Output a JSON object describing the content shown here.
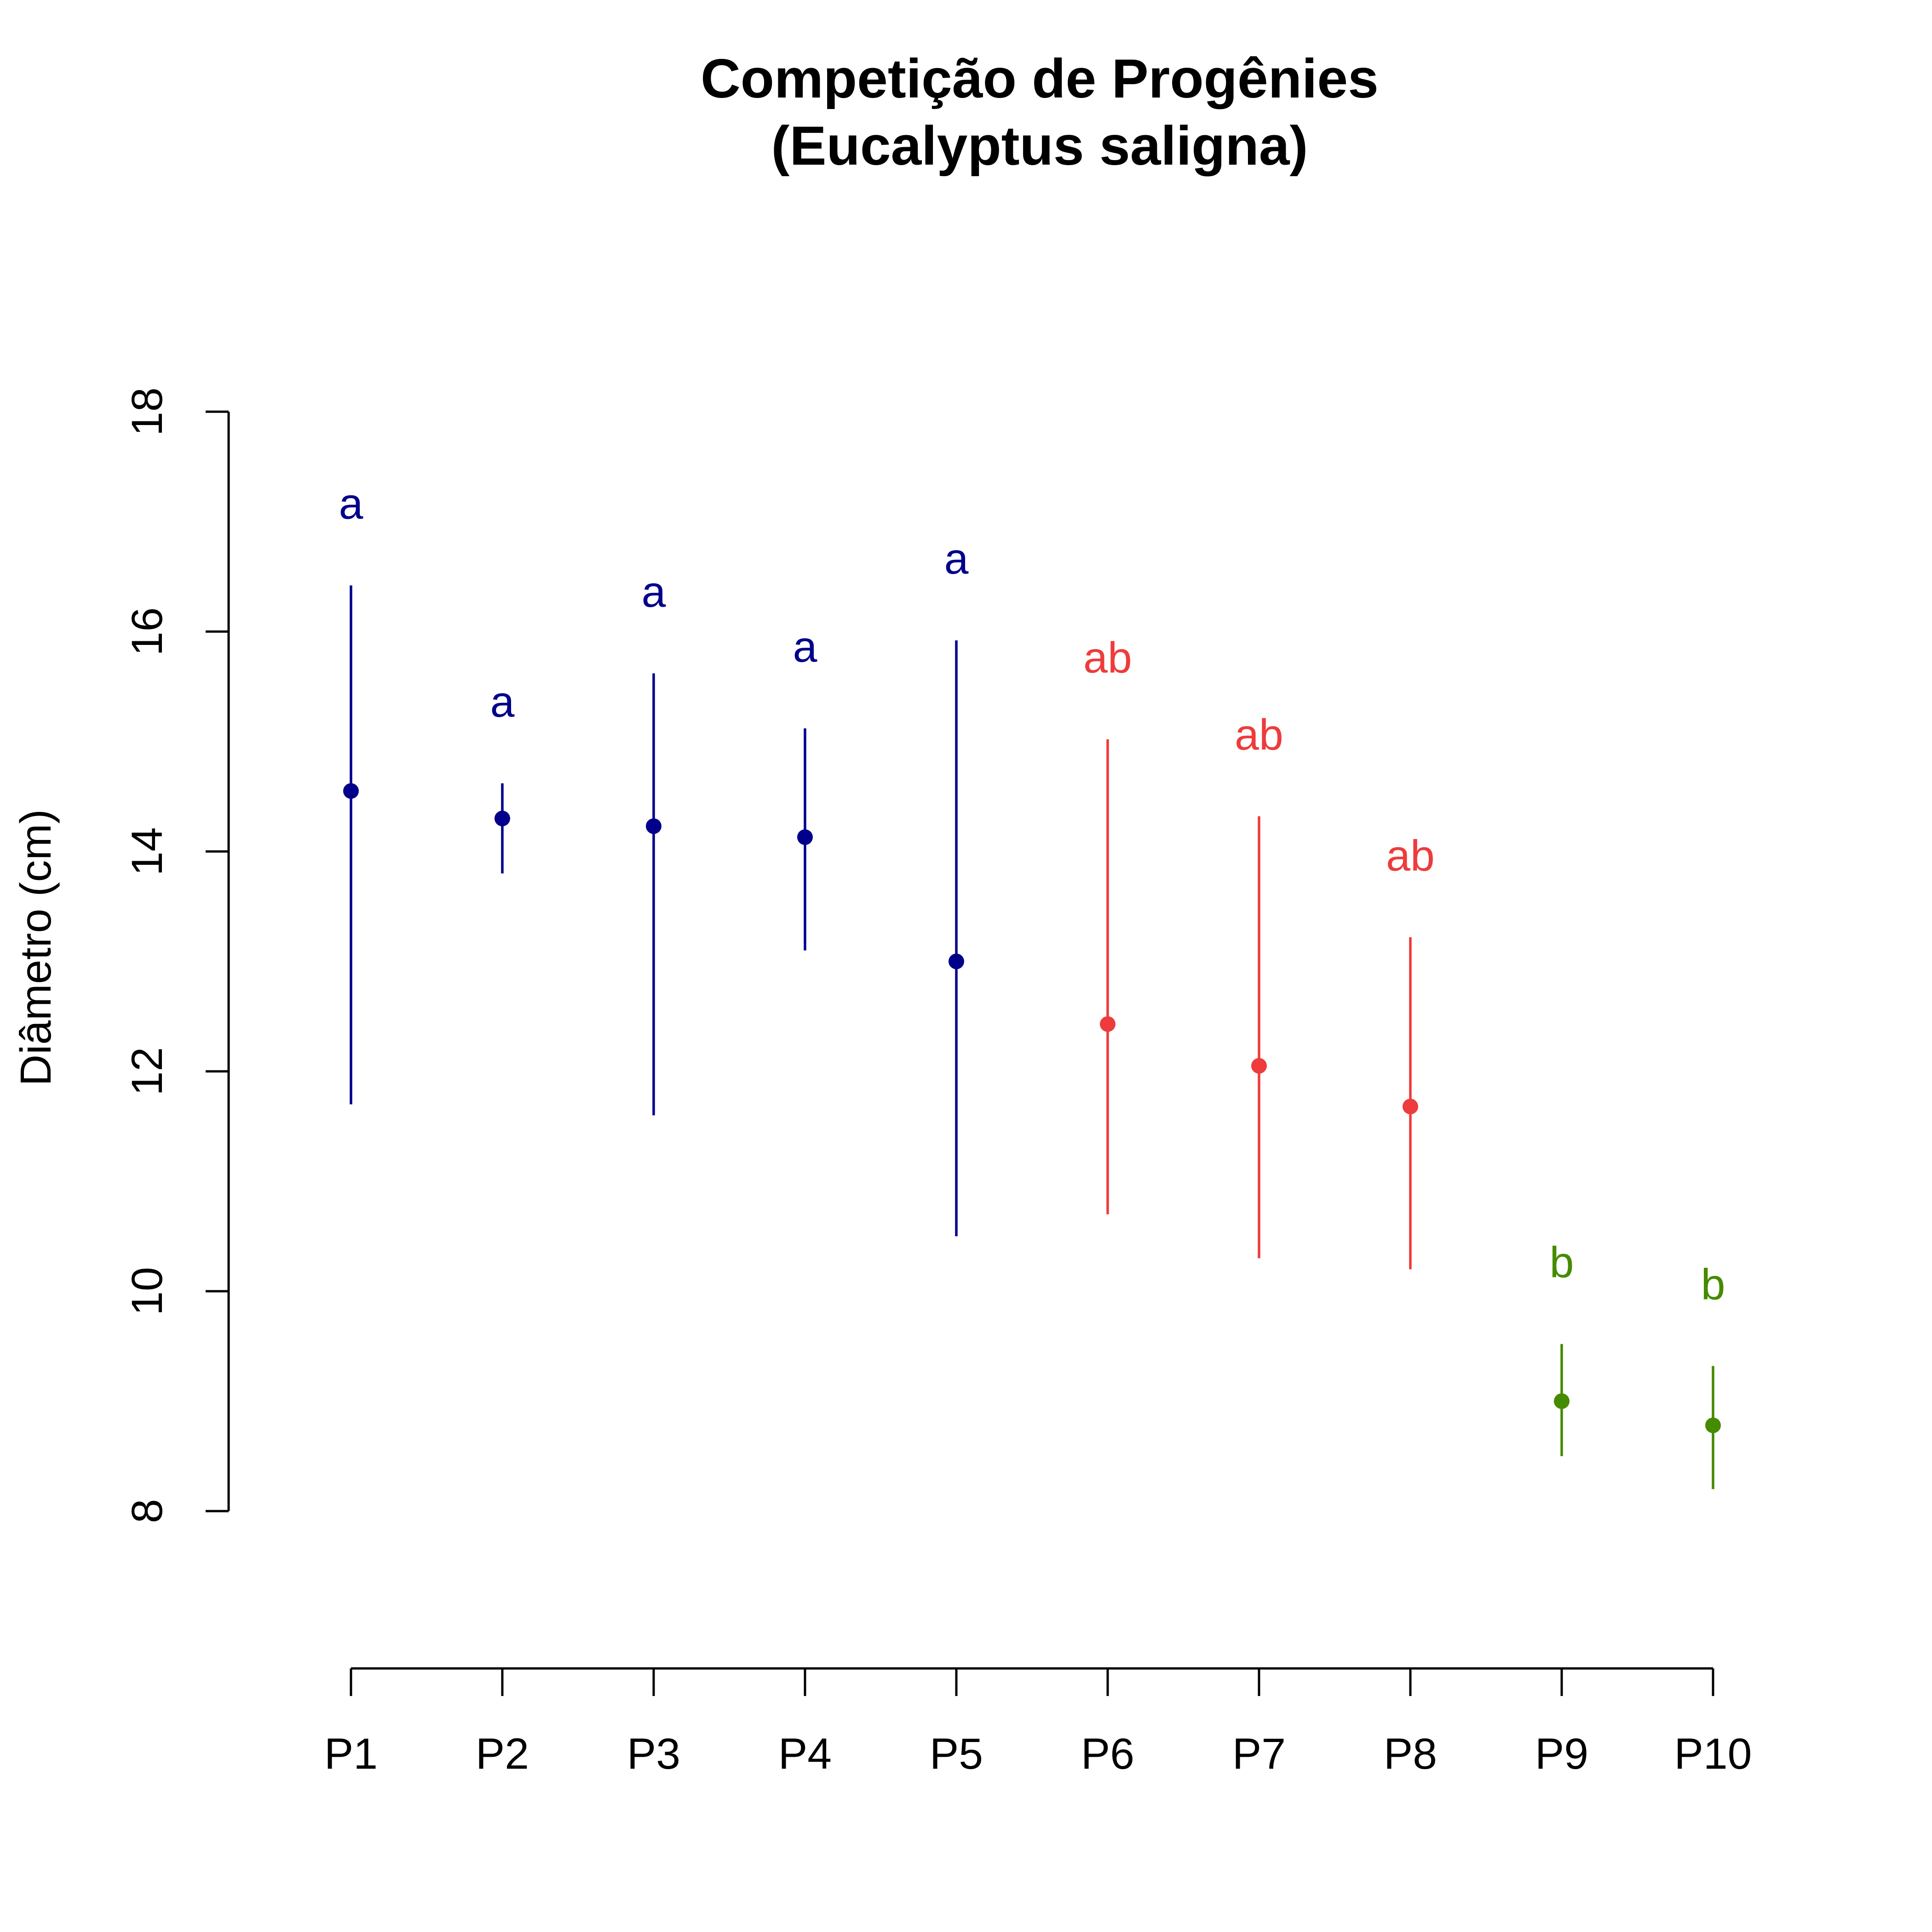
{
  "chart_data": {
    "type": "scatter",
    "title": [
      "Competição de Progênies",
      "(Eucalyptus saligna)"
    ],
    "xlabel": "",
    "ylabel": "Diâmetro (cm)",
    "categories": [
      "P1",
      "P2",
      "P3",
      "P4",
      "P5",
      "P6",
      "P7",
      "P8",
      "P9",
      "P10"
    ],
    "ylim": [
      8,
      18
    ],
    "yticks": [
      8,
      10,
      12,
      14,
      16,
      18
    ],
    "grid": false,
    "points": [
      {
        "x": "P1",
        "mean": 14.55,
        "lower": 11.7,
        "upper": 16.42,
        "label": "a",
        "group": "a"
      },
      {
        "x": "P2",
        "mean": 14.3,
        "lower": 13.8,
        "upper": 14.62,
        "label": "a",
        "group": "a"
      },
      {
        "x": "P3",
        "mean": 14.23,
        "lower": 11.6,
        "upper": 15.62,
        "label": "a",
        "group": "a"
      },
      {
        "x": "P4",
        "mean": 14.13,
        "lower": 13.1,
        "upper": 15.12,
        "label": "a",
        "group": "a"
      },
      {
        "x": "P5",
        "mean": 13.0,
        "lower": 10.5,
        "upper": 15.92,
        "label": "a",
        "group": "a"
      },
      {
        "x": "P6",
        "mean": 12.43,
        "lower": 10.7,
        "upper": 15.02,
        "label": "ab",
        "group": "ab"
      },
      {
        "x": "P7",
        "mean": 12.05,
        "lower": 10.3,
        "upper": 14.32,
        "label": "ab",
        "group": "ab"
      },
      {
        "x": "P8",
        "mean": 11.68,
        "lower": 10.2,
        "upper": 13.22,
        "label": "ab",
        "group": "ab"
      },
      {
        "x": "P9",
        "mean": 9.0,
        "lower": 8.5,
        "upper": 9.52,
        "label": "b",
        "group": "b"
      },
      {
        "x": "P10",
        "mean": 8.78,
        "lower": 8.2,
        "upper": 9.32,
        "label": "b",
        "group": "b"
      }
    ],
    "group_colors": {
      "a": "#00008B",
      "ab": "#EE3B3B",
      "b": "#458B00"
    }
  }
}
